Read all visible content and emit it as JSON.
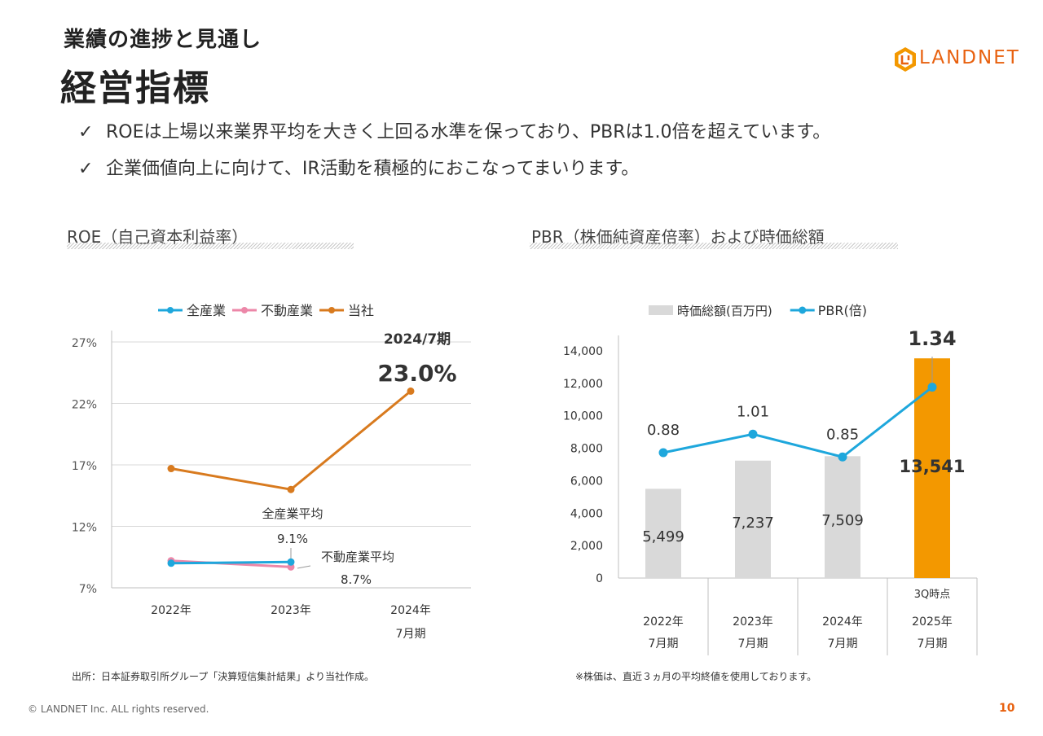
{
  "header": {
    "subtitle": "業績の進捗と見通し",
    "title": "経営指標",
    "logo_text": "LANDNET"
  },
  "bullets": [
    {
      "check": "✓",
      "text": "ROEは上場以来業界平均を大きく上回る水準を保っており、PBRは1.0倍を超えています。"
    },
    {
      "check": "✓",
      "text": "企業価値向上に向けて、IR活動を積極的におこなってまいります。"
    }
  ],
  "roe_section": {
    "title": "ROE（自己資本利益率）",
    "note": "出所：日本証券取引所グループ「決算短信集計結果」より当社作成。"
  },
  "pbr_section": {
    "title": "PBR（株価純資産倍率）および時価総額",
    "note": "※株価は、直近３ヵ月の平均終値を使用しております。"
  },
  "footer": {
    "copyright": "© LANDNET Inc. ALL rights reserved.",
    "page_number": "10"
  },
  "colors": {
    "accent": "#e8610f",
    "company": "#d87a1e",
    "all_industry": "#1ea7dc",
    "real_estate": "#ec87a8",
    "bar_gray": "#d9d9d9",
    "bar_orange": "#f39800",
    "pbr_line": "#1ea7dc"
  },
  "chart_data": [
    {
      "type": "line",
      "categories": [
        "2022年",
        "2023年",
        "2024年\n7月期"
      ],
      "series": [
        {
          "name": "全産業",
          "values": [
            9.0,
            9.1,
            null
          ]
        },
        {
          "name": "不動産業",
          "values": [
            9.2,
            8.7,
            null
          ]
        },
        {
          "name": "当社",
          "values": [
            16.7,
            15.0,
            23.0
          ]
        }
      ],
      "yticks": [
        "7%",
        "12%",
        "17%",
        "22%",
        "27%"
      ],
      "ylim": [
        7,
        27
      ],
      "grid": true,
      "legend": "top",
      "annotations": {
        "highlight_period": "2024/7期",
        "highlight_value": "23.0%",
        "all_industry_label": "全産業平均",
        "all_industry_value": "9.1%",
        "real_estate_label": "不動産業平均",
        "real_estate_value": "8.7%"
      }
    },
    {
      "type": "bar",
      "categories": [
        {
          "line1": "2022年",
          "line2": "7月期",
          "note": ""
        },
        {
          "line1": "2023年",
          "line2": "7月期",
          "note": ""
        },
        {
          "line1": "2024年",
          "line2": "7月期",
          "note": ""
        },
        {
          "line1": "2025年",
          "line2": "7月期",
          "note": "3Q時点"
        }
      ],
      "series": [
        {
          "name": "時価総額(百万円)",
          "type": "bar",
          "values": [
            5499,
            7237,
            7509,
            13541
          ],
          "labels": [
            "5,499",
            "7,237",
            "7,509",
            "13,541"
          ]
        },
        {
          "name": "PBR(倍)",
          "type": "line",
          "values": [
            0.88,
            1.01,
            0.85,
            1.34
          ],
          "labels": [
            "0.88",
            "1.01",
            "0.85",
            "1.34"
          ]
        }
      ],
      "yticks": [
        "0",
        "2,000",
        "4,000",
        "6,000",
        "8,000",
        "10,000",
        "12,000",
        "14,000"
      ],
      "ylim": [
        0,
        14000
      ],
      "legend": "top"
    }
  ]
}
